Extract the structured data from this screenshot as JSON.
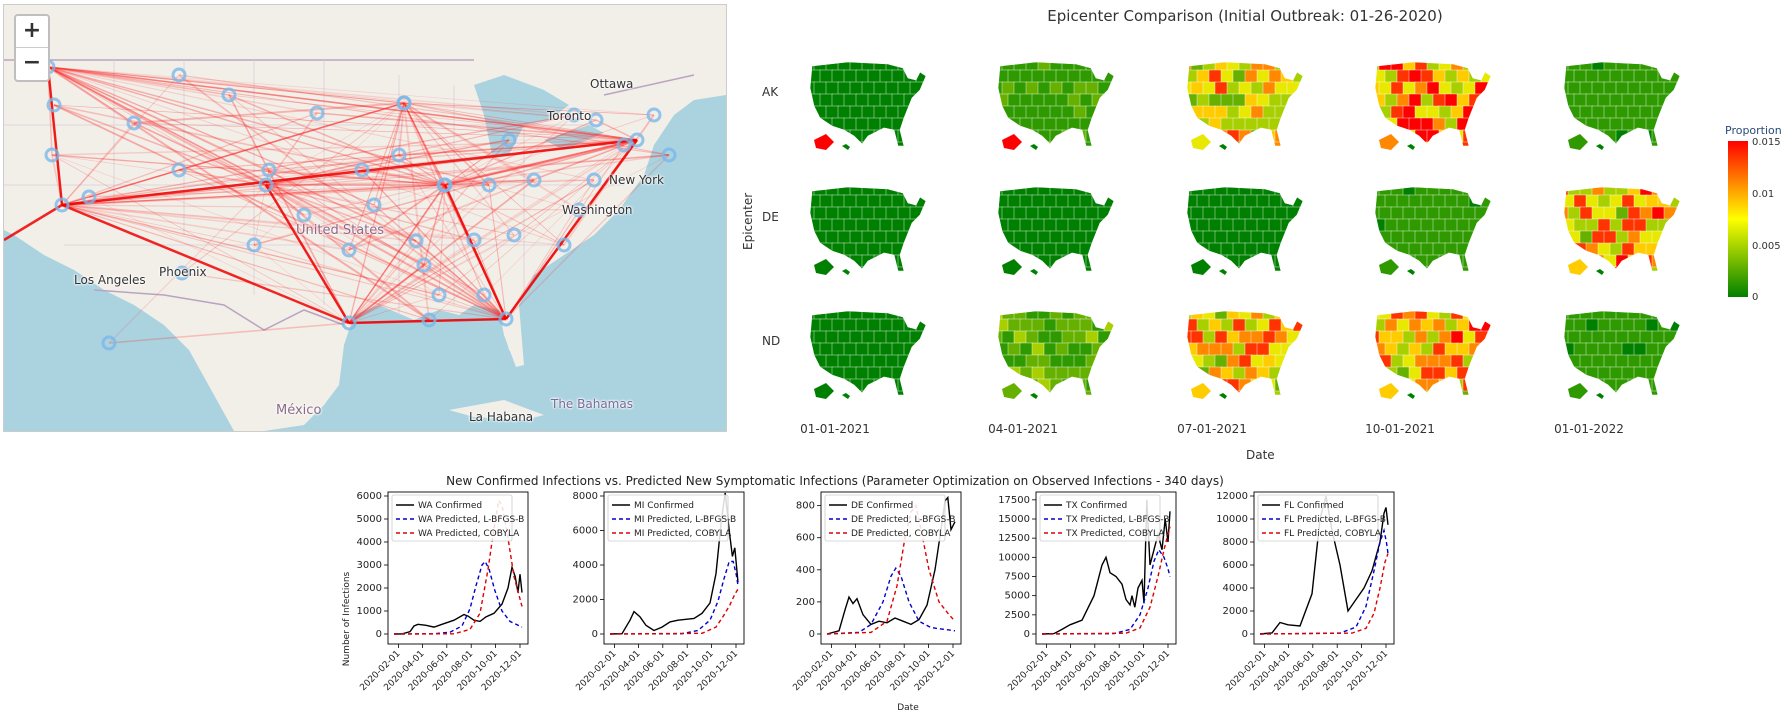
{
  "map": {
    "zoom_in": "+",
    "zoom_out": "−",
    "cities": [
      {
        "name": "Ottawa"
      },
      {
        "name": "Toronto"
      },
      {
        "name": "New York"
      },
      {
        "name": "Washington"
      },
      {
        "name": "United States"
      },
      {
        "name": "Los Angeles"
      },
      {
        "name": "Phoenix"
      },
      {
        "name": "México"
      },
      {
        "name": "La Habana"
      },
      {
        "name": "The Bahamas"
      }
    ],
    "colors": {
      "water": "#aad3df",
      "land": "#f2efe9",
      "edge": "#ff0000",
      "node": "#7ab8e8"
    }
  },
  "epicenter": {
    "title": "Epicenter Comparison (Initial Outbreak: 01-26-2020)",
    "ylabel": "Epicenter",
    "xlabel": "Date",
    "rows": [
      "AK",
      "DE",
      "ND"
    ],
    "cols": [
      "01-01-2021",
      "04-01-2021",
      "07-01-2021",
      "10-01-2021",
      "01-01-2022"
    ],
    "colorbar": {
      "title": "Proportion",
      "ticks": [
        "0.015",
        "0.01",
        "0.005",
        "0"
      ],
      "min": 0,
      "max": 0.015
    },
    "intensity": [
      [
        0.0,
        0.15,
        0.55,
        0.7,
        0.12
      ],
      [
        0.0,
        0.0,
        0.0,
        0.12,
        0.62
      ],
      [
        0.04,
        0.22,
        0.6,
        0.62,
        0.12
      ]
    ]
  },
  "chart_data": {
    "title": "New Confirmed Infections vs. Predicted New Symptomatic Infections (Parameter Optimization on Observed Infections - 340 days)",
    "xlabel": "Date",
    "ylabel": "Number of Infections",
    "x_ticks": [
      "2020-02-01",
      "2020-04-01",
      "2020-06-01",
      "2020-08-01",
      "2020-10-01",
      "2020-12-01"
    ],
    "colors": {
      "confirmed": "#000000",
      "lbfgsb": "#0000cc",
      "cobyla": "#dd0000"
    },
    "panels": [
      {
        "state": "WA",
        "legend": [
          "WA Confirmed",
          "WA Predicted, L-BFGS-B",
          "WA Predicted, COBYLA"
        ],
        "ylim": [
          0,
          6000
        ],
        "y_ticks": [
          0,
          1000,
          2000,
          3000,
          4000,
          5000,
          6000
        ],
        "confirmed": [
          [
            0,
            0
          ],
          [
            20,
            5
          ],
          [
            40,
            100
          ],
          [
            50,
            350
          ],
          [
            60,
            420
          ],
          [
            80,
            380
          ],
          [
            100,
            300
          ],
          [
            120,
            420
          ],
          [
            150,
            600
          ],
          [
            175,
            850
          ],
          [
            185,
            780
          ],
          [
            200,
            600
          ],
          [
            215,
            550
          ],
          [
            230,
            750
          ],
          [
            250,
            900
          ],
          [
            270,
            1300
          ],
          [
            285,
            2000
          ],
          [
            295,
            2900
          ],
          [
            303,
            2500
          ],
          [
            310,
            1800
          ],
          [
            315,
            2600
          ],
          [
            320,
            1800
          ]
        ],
        "lbfgsb": [
          [
            0,
            0
          ],
          [
            100,
            10
          ],
          [
            140,
            80
          ],
          [
            170,
            350
          ],
          [
            190,
            1100
          ],
          [
            205,
            2100
          ],
          [
            220,
            3000
          ],
          [
            228,
            3150
          ],
          [
            238,
            2800
          ],
          [
            252,
            1900
          ],
          [
            270,
            1000
          ],
          [
            290,
            550
          ],
          [
            320,
            300
          ]
        ],
        "cobyla": [
          [
            0,
            0
          ],
          [
            150,
            10
          ],
          [
            190,
            200
          ],
          [
            215,
            900
          ],
          [
            235,
            2800
          ],
          [
            250,
            4600
          ],
          [
            262,
            5800
          ],
          [
            270,
            5600
          ],
          [
            282,
            4500
          ],
          [
            300,
            2500
          ],
          [
            320,
            1200
          ]
        ]
      },
      {
        "state": "MI",
        "legend": [
          "MI Confirmed",
          "MI Predicted, L-BFGS-B",
          "MI Predicted, COBYLA"
        ],
        "ylim": [
          0,
          8000
        ],
        "y_ticks": [
          0,
          2000,
          4000,
          6000,
          8000
        ],
        "confirmed": [
          [
            0,
            0
          ],
          [
            30,
            20
          ],
          [
            50,
            800
          ],
          [
            60,
            1300
          ],
          [
            75,
            1000
          ],
          [
            90,
            500
          ],
          [
            110,
            200
          ],
          [
            130,
            400
          ],
          [
            150,
            700
          ],
          [
            170,
            800
          ],
          [
            190,
            850
          ],
          [
            210,
            900
          ],
          [
            230,
            1200
          ],
          [
            250,
            1800
          ],
          [
            265,
            3500
          ],
          [
            278,
            6500
          ],
          [
            288,
            8400
          ],
          [
            298,
            6000
          ],
          [
            306,
            4500
          ],
          [
            312,
            5000
          ],
          [
            320,
            3000
          ]
        ],
        "lbfgsb": [
          [
            0,
            0
          ],
          [
            180,
            20
          ],
          [
            220,
            200
          ],
          [
            250,
            800
          ],
          [
            270,
            1900
          ],
          [
            285,
            3200
          ],
          [
            298,
            4200
          ],
          [
            308,
            4200
          ],
          [
            316,
            3400
          ],
          [
            320,
            2800
          ]
        ],
        "cobyla": [
          [
            0,
            0
          ],
          [
            230,
            40
          ],
          [
            265,
            400
          ],
          [
            285,
            1100
          ],
          [
            300,
            1700
          ],
          [
            312,
            2300
          ],
          [
            320,
            2600
          ]
        ]
      },
      {
        "state": "DE",
        "legend": [
          "DE Confirmed",
          "DE Predicted, L-BFGS-B",
          "DE Predicted, COBYLA"
        ],
        "ylim": [
          0,
          860
        ],
        "y_ticks": [
          0,
          200,
          400,
          600,
          800
        ],
        "confirmed": [
          [
            0,
            0
          ],
          [
            30,
            20
          ],
          [
            45,
            150
          ],
          [
            55,
            230
          ],
          [
            65,
            190
          ],
          [
            75,
            220
          ],
          [
            90,
            120
          ],
          [
            110,
            60
          ],
          [
            130,
            80
          ],
          [
            150,
            70
          ],
          [
            170,
            100
          ],
          [
            190,
            80
          ],
          [
            210,
            60
          ],
          [
            230,
            90
          ],
          [
            250,
            180
          ],
          [
            270,
            400
          ],
          [
            285,
            650
          ],
          [
            295,
            830
          ],
          [
            302,
            850
          ],
          [
            310,
            650
          ],
          [
            320,
            700
          ]
        ],
        "lbfgsb": [
          [
            0,
            0
          ],
          [
            80,
            10
          ],
          [
            110,
            60
          ],
          [
            140,
            200
          ],
          [
            160,
            360
          ],
          [
            172,
            410
          ],
          [
            185,
            360
          ],
          [
            205,
            200
          ],
          [
            230,
            80
          ],
          [
            260,
            40
          ],
          [
            320,
            20
          ]
        ],
        "cobyla": [
          [
            0,
            0
          ],
          [
            110,
            10
          ],
          [
            150,
            80
          ],
          [
            175,
            300
          ],
          [
            195,
            600
          ],
          [
            210,
            760
          ],
          [
            222,
            800
          ],
          [
            235,
            650
          ],
          [
            255,
            400
          ],
          [
            280,
            200
          ],
          [
            305,
            120
          ],
          [
            320,
            80
          ]
        ]
      },
      {
        "state": "TX",
        "legend": [
          "TX Confirmed",
          "TX Predicted, L-BFGS-B",
          "TX Predicted, COBYLA"
        ],
        "ylim": [
          0,
          18000
        ],
        "y_ticks": [
          0,
          2500,
          5000,
          7500,
          10000,
          12500,
          15000,
          17500
        ],
        "confirmed": [
          [
            0,
            0
          ],
          [
            30,
            50
          ],
          [
            50,
            600
          ],
          [
            70,
            1200
          ],
          [
            100,
            1800
          ],
          [
            130,
            5000
          ],
          [
            150,
            9000
          ],
          [
            160,
            10000
          ],
          [
            170,
            8000
          ],
          [
            185,
            7500
          ],
          [
            200,
            6500
          ],
          [
            210,
            4500
          ],
          [
            220,
            3800
          ],
          [
            225,
            5000
          ],
          [
            232,
            3500
          ],
          [
            240,
            6000
          ],
          [
            250,
            7000
          ],
          [
            255,
            4000
          ],
          [
            262,
            17500
          ],
          [
            270,
            9000
          ],
          [
            280,
            11000
          ],
          [
            290,
            13000
          ],
          [
            300,
            11000
          ],
          [
            308,
            15000
          ],
          [
            315,
            12000
          ],
          [
            320,
            16000
          ]
        ],
        "lbfgsb": [
          [
            0,
            0
          ],
          [
            180,
            50
          ],
          [
            220,
            600
          ],
          [
            245,
            2500
          ],
          [
            265,
            6000
          ],
          [
            280,
            9500
          ],
          [
            292,
            11000
          ],
          [
            305,
            10000
          ],
          [
            315,
            8500
          ],
          [
            320,
            7500
          ]
        ],
        "cobyla": [
          [
            0,
            0
          ],
          [
            210,
            100
          ],
          [
            245,
            800
          ],
          [
            270,
            3500
          ],
          [
            290,
            7500
          ],
          [
            305,
            11000
          ],
          [
            315,
            13000
          ],
          [
            320,
            14000
          ]
        ]
      },
      {
        "state": "FL",
        "legend": [
          "FL Confirmed",
          "FL Predicted, L-BFGS-B",
          "FL Predicted, COBYLA"
        ],
        "ylim": [
          0,
          12000
        ],
        "y_ticks": [
          0,
          2000,
          4000,
          6000,
          8000,
          10000,
          12000
        ],
        "confirmed": [
          [
            0,
            0
          ],
          [
            30,
            100
          ],
          [
            50,
            1000
          ],
          [
            70,
            800
          ],
          [
            100,
            700
          ],
          [
            130,
            3500
          ],
          [
            150,
            10000
          ],
          [
            165,
            12000
          ],
          [
            180,
            9000
          ],
          [
            200,
            6000
          ],
          [
            210,
            4000
          ],
          [
            220,
            2000
          ],
          [
            240,
            3000
          ],
          [
            260,
            4000
          ],
          [
            280,
            5500
          ],
          [
            300,
            8000
          ],
          [
            310,
            10500
          ],
          [
            315,
            11000
          ],
          [
            320,
            9500
          ]
        ],
        "lbfgsb": [
          [
            0,
            0
          ],
          [
            200,
            80
          ],
          [
            240,
            600
          ],
          [
            265,
            2400
          ],
          [
            285,
            5500
          ],
          [
            300,
            8000
          ],
          [
            310,
            9000
          ],
          [
            316,
            8000
          ],
          [
            320,
            7000
          ]
        ],
        "cobyla": [
          [
            0,
            0
          ],
          [
            230,
            80
          ],
          [
            265,
            500
          ],
          [
            285,
            1800
          ],
          [
            300,
            4000
          ],
          [
            312,
            6200
          ],
          [
            320,
            7000
          ]
        ]
      }
    ]
  }
}
